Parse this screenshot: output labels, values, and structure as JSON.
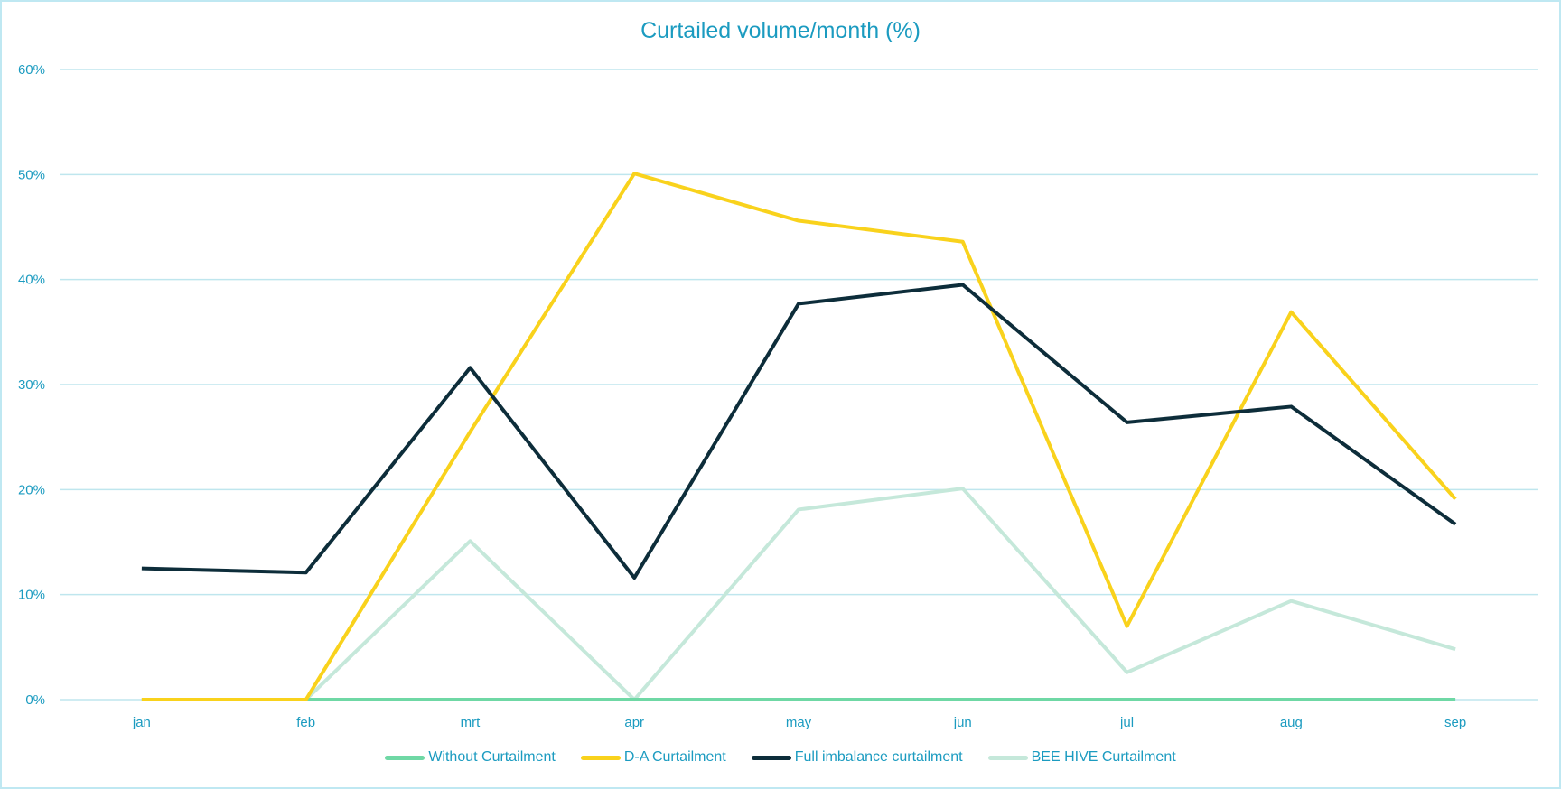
{
  "chart_data": {
    "type": "line",
    "title": "Curtailed volume/month (%)",
    "xlabel": "",
    "ylabel": "",
    "categories": [
      "jan",
      "feb",
      "mrt",
      "apr",
      "may",
      "jun",
      "jul",
      "aug",
      "sep"
    ],
    "ylim": [
      0,
      60
    ],
    "yticks": [
      "0%",
      "10%",
      "20%",
      "30%",
      "40%",
      "50%",
      "60%"
    ],
    "ytick_values": [
      0,
      10,
      20,
      30,
      40,
      50,
      60
    ],
    "grid": true,
    "legend_position": "bottom",
    "series": [
      {
        "name": "Without Curtailment",
        "color": "#6fd8a5",
        "values": [
          0,
          0,
          0,
          0,
          0,
          0,
          0,
          0,
          0
        ]
      },
      {
        "name": "D-A Curtailment",
        "color": "#f9d21c",
        "values": [
          0,
          0,
          25.5,
          50.1,
          45.6,
          43.6,
          7.0,
          36.9,
          19.1
        ]
      },
      {
        "name": "Full imbalance curtailment",
        "color": "#0d2d3a",
        "values": [
          12.5,
          12.1,
          31.6,
          11.6,
          37.7,
          39.5,
          26.4,
          27.9,
          16.7
        ]
      },
      {
        "name": "BEE HIVE Curtailment",
        "color": "#c5e8da",
        "values": [
          0,
          0,
          15.1,
          0,
          18.1,
          20.1,
          2.6,
          9.4,
          4.8
        ]
      }
    ],
    "colors": {
      "text": "#1b9bc0",
      "grid": "#bfe6ee"
    }
  }
}
